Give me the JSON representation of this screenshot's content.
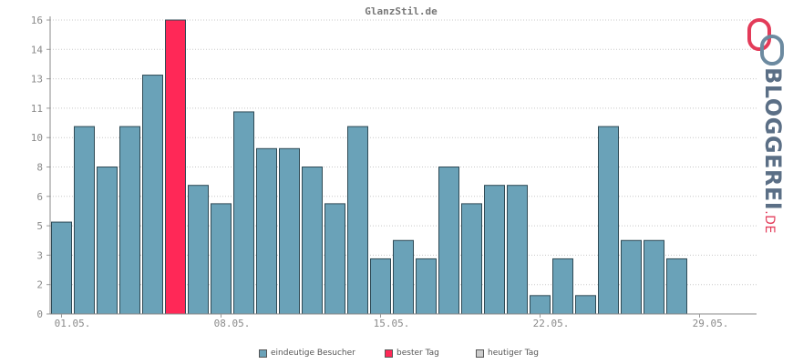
{
  "chart_data": {
    "type": "bar",
    "title": "GlanzStil.de",
    "x_tick_labels": [
      "01.05.",
      "08.05.",
      "15.05.",
      "22.05.",
      "29.05."
    ],
    "y_tick_labels": [
      "0",
      "2",
      "3",
      "5",
      "6",
      "8",
      "10",
      "11",
      "13",
      "14",
      "16"
    ],
    "ylim": [
      0,
      16
    ],
    "days": 31,
    "values": [
      5,
      10.2,
      8,
      10.2,
      13,
      16,
      7,
      6,
      11,
      9,
      9,
      8,
      6,
      10.2,
      3,
      4,
      3,
      8,
      6,
      7,
      7,
      1,
      3,
      1,
      10.2,
      4,
      4,
      3,
      0,
      0,
      0
    ],
    "best_day_index": 5,
    "grid": true,
    "legend_position": "bottom",
    "colors": {
      "bar": "#6aa2b8",
      "best": "#ff2857",
      "today": "#cccccc",
      "bar_stroke": "#2f4a55"
    }
  },
  "legend": [
    {
      "label": "eindeutige Besucher",
      "color": "#6aa2b8"
    },
    {
      "label": "bester Tag",
      "color": "#ff2857"
    },
    {
      "label": "heutiger Tag",
      "color": "#cccccc"
    }
  ],
  "logo": {
    "main": "BLOGGEREI",
    "suffix": ".DE"
  }
}
